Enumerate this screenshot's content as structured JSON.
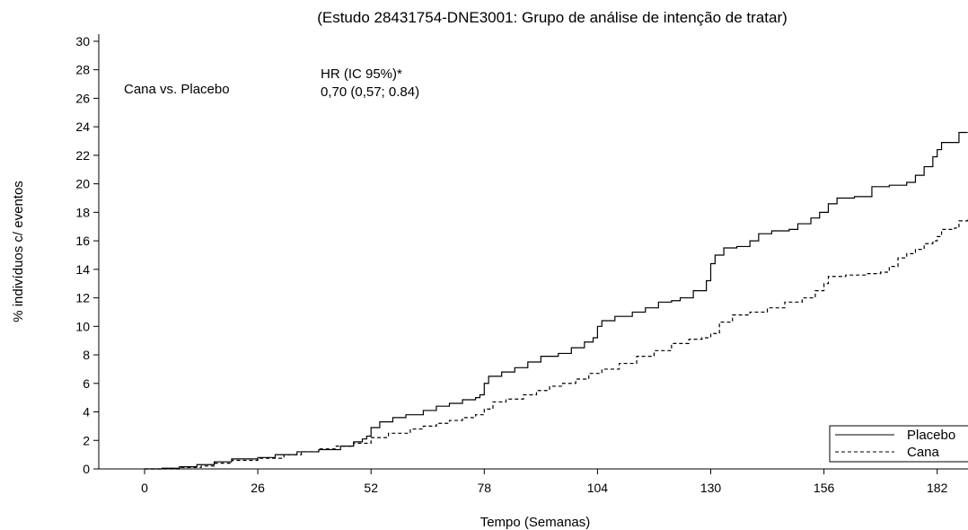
{
  "chart_data": {
    "type": "line",
    "title": "(Estudo 28431754-DNE3001: Grupo de análise de intenção de tratar)",
    "xlabel": "Tempo (Semanas)",
    "ylabel": "% indivíduos c/ eventos",
    "xlim": [
      -10,
      189
    ],
    "ylim": [
      0,
      30.5
    ],
    "xticks": [
      0,
      26,
      52,
      78,
      104,
      130,
      156,
      182
    ],
    "yticks": [
      0,
      2,
      4,
      6,
      8,
      10,
      12,
      14,
      16,
      18,
      20,
      22,
      24,
      26,
      28,
      30
    ],
    "annotations": {
      "comparison": "Cana vs. Placebo",
      "hr_header": "HR (IC 95%)*",
      "hr_value": "0,70 (0,57; 0.84)"
    },
    "legend_position": "bottom-right",
    "series": [
      {
        "name": "Placebo",
        "style": "solid",
        "color": "#000000",
        "points": [
          [
            0,
            0
          ],
          [
            4,
            0.05
          ],
          [
            8,
            0.15
          ],
          [
            12,
            0.3
          ],
          [
            16,
            0.5
          ],
          [
            20,
            0.7
          ],
          [
            26,
            0.8
          ],
          [
            30,
            1.0
          ],
          [
            35,
            1.2
          ],
          [
            40,
            1.35
          ],
          [
            45,
            1.6
          ],
          [
            48,
            1.9
          ],
          [
            50,
            2.1
          ],
          [
            51,
            2.3
          ],
          [
            52,
            2.9
          ],
          [
            54,
            3.3
          ],
          [
            57,
            3.6
          ],
          [
            60,
            3.8
          ],
          [
            64,
            4.1
          ],
          [
            67,
            4.4
          ],
          [
            70,
            4.6
          ],
          [
            73,
            4.85
          ],
          [
            76,
            5.0
          ],
          [
            77,
            5.2
          ],
          [
            78,
            6.0
          ],
          [
            79,
            6.5
          ],
          [
            82,
            6.8
          ],
          [
            85,
            7.1
          ],
          [
            88,
            7.5
          ],
          [
            91,
            7.9
          ],
          [
            95,
            8.1
          ],
          [
            98,
            8.5
          ],
          [
            101,
            8.9
          ],
          [
            103,
            9.2
          ],
          [
            104,
            10.0
          ],
          [
            105,
            10.4
          ],
          [
            108,
            10.7
          ],
          [
            112,
            11.0
          ],
          [
            115,
            11.3
          ],
          [
            118,
            11.7
          ],
          [
            121,
            11.8
          ],
          [
            123,
            12.0
          ],
          [
            126,
            12.5
          ],
          [
            129,
            13.2
          ],
          [
            130,
            14.4
          ],
          [
            131,
            15.0
          ],
          [
            133,
            15.5
          ],
          [
            136,
            15.6
          ],
          [
            139,
            16.0
          ],
          [
            141,
            16.5
          ],
          [
            144,
            16.7
          ],
          [
            148,
            16.8
          ],
          [
            150,
            17.2
          ],
          [
            153,
            17.6
          ],
          [
            155,
            18.0
          ],
          [
            157,
            18.6
          ],
          [
            159,
            19.0
          ],
          [
            163,
            19.1
          ],
          [
            167,
            19.8
          ],
          [
            171,
            19.9
          ],
          [
            175,
            20.1
          ],
          [
            177,
            20.6
          ],
          [
            179,
            21.2
          ],
          [
            181,
            21.9
          ],
          [
            182,
            22.4
          ],
          [
            183,
            22.9
          ],
          [
            187,
            23.6
          ],
          [
            189,
            23.6
          ]
        ]
      },
      {
        "name": "Cana",
        "style": "dashed",
        "color": "#000000",
        "points": [
          [
            0,
            0
          ],
          [
            8,
            0.1
          ],
          [
            13,
            0.2
          ],
          [
            16,
            0.4
          ],
          [
            20,
            0.6
          ],
          [
            26,
            0.75
          ],
          [
            32,
            1.0
          ],
          [
            36,
            1.2
          ],
          [
            40,
            1.4
          ],
          [
            44,
            1.6
          ],
          [
            48,
            1.8
          ],
          [
            52,
            2.2
          ],
          [
            56,
            2.5
          ],
          [
            61,
            2.8
          ],
          [
            64,
            3.0
          ],
          [
            67,
            3.2
          ],
          [
            70,
            3.4
          ],
          [
            73,
            3.6
          ],
          [
            76,
            3.8
          ],
          [
            78,
            4.2
          ],
          [
            80,
            4.7
          ],
          [
            83,
            4.9
          ],
          [
            87,
            5.2
          ],
          [
            90,
            5.5
          ],
          [
            93,
            5.8
          ],
          [
            96,
            6.0
          ],
          [
            99,
            6.3
          ],
          [
            102,
            6.7
          ],
          [
            105,
            7.0
          ],
          [
            109,
            7.4
          ],
          [
            113,
            7.9
          ],
          [
            117,
            8.3
          ],
          [
            121,
            8.8
          ],
          [
            125,
            9.1
          ],
          [
            128,
            9.2
          ],
          [
            130,
            9.5
          ],
          [
            132,
            10.3
          ],
          [
            135,
            10.8
          ],
          [
            139,
            11.0
          ],
          [
            143,
            11.3
          ],
          [
            147,
            11.7
          ],
          [
            151,
            12.0
          ],
          [
            154,
            12.5
          ],
          [
            156,
            13.0
          ],
          [
            157,
            13.5
          ],
          [
            161,
            13.6
          ],
          [
            166,
            13.7
          ],
          [
            169,
            13.8
          ],
          [
            171,
            14.2
          ],
          [
            173,
            14.8
          ],
          [
            175,
            15.1
          ],
          [
            177,
            15.4
          ],
          [
            179,
            15.8
          ],
          [
            181,
            16.0
          ],
          [
            182,
            16.3
          ],
          [
            183,
            16.8
          ],
          [
            186,
            16.9
          ],
          [
            187,
            17.4
          ],
          [
            189,
            17.5
          ]
        ]
      }
    ]
  }
}
